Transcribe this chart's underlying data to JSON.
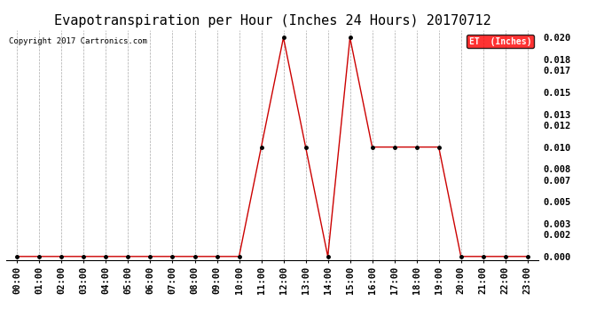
{
  "title": "Evapotranspiration per Hour (Inches 24 Hours) 20170712",
  "copyright": "Copyright 2017 Cartronics.com",
  "legend_label": "ET  (Inches)",
  "legend_bg": "#ff0000",
  "legend_text_color": "#ffffff",
  "line_color": "#cc0000",
  "marker_color": "#000000",
  "hours": [
    "00:00",
    "01:00",
    "02:00",
    "03:00",
    "04:00",
    "05:00",
    "06:00",
    "07:00",
    "08:00",
    "09:00",
    "10:00",
    "11:00",
    "12:00",
    "13:00",
    "14:00",
    "15:00",
    "16:00",
    "17:00",
    "18:00",
    "19:00",
    "20:00",
    "21:00",
    "22:00",
    "23:00"
  ],
  "values": [
    0.0,
    0.0,
    0.0,
    0.0,
    0.0,
    0.0,
    0.0,
    0.0,
    0.0,
    0.0,
    0.0,
    0.01,
    0.02,
    0.01,
    0.0,
    0.02,
    0.01,
    0.01,
    0.01,
    0.01,
    0.0,
    0.0,
    0.0,
    0.0
  ],
  "ylim_min": -0.0003,
  "ylim_max": 0.0207,
  "yticks": [
    0.0,
    0.002,
    0.003,
    0.005,
    0.007,
    0.008,
    0.01,
    0.012,
    0.013,
    0.015,
    0.017,
    0.018,
    0.02
  ],
  "bg_color": "#ffffff",
  "grid_color": "#aaaaaa",
  "title_fontsize": 11,
  "axis_fontsize": 7.5,
  "copyright_fontsize": 6.5
}
